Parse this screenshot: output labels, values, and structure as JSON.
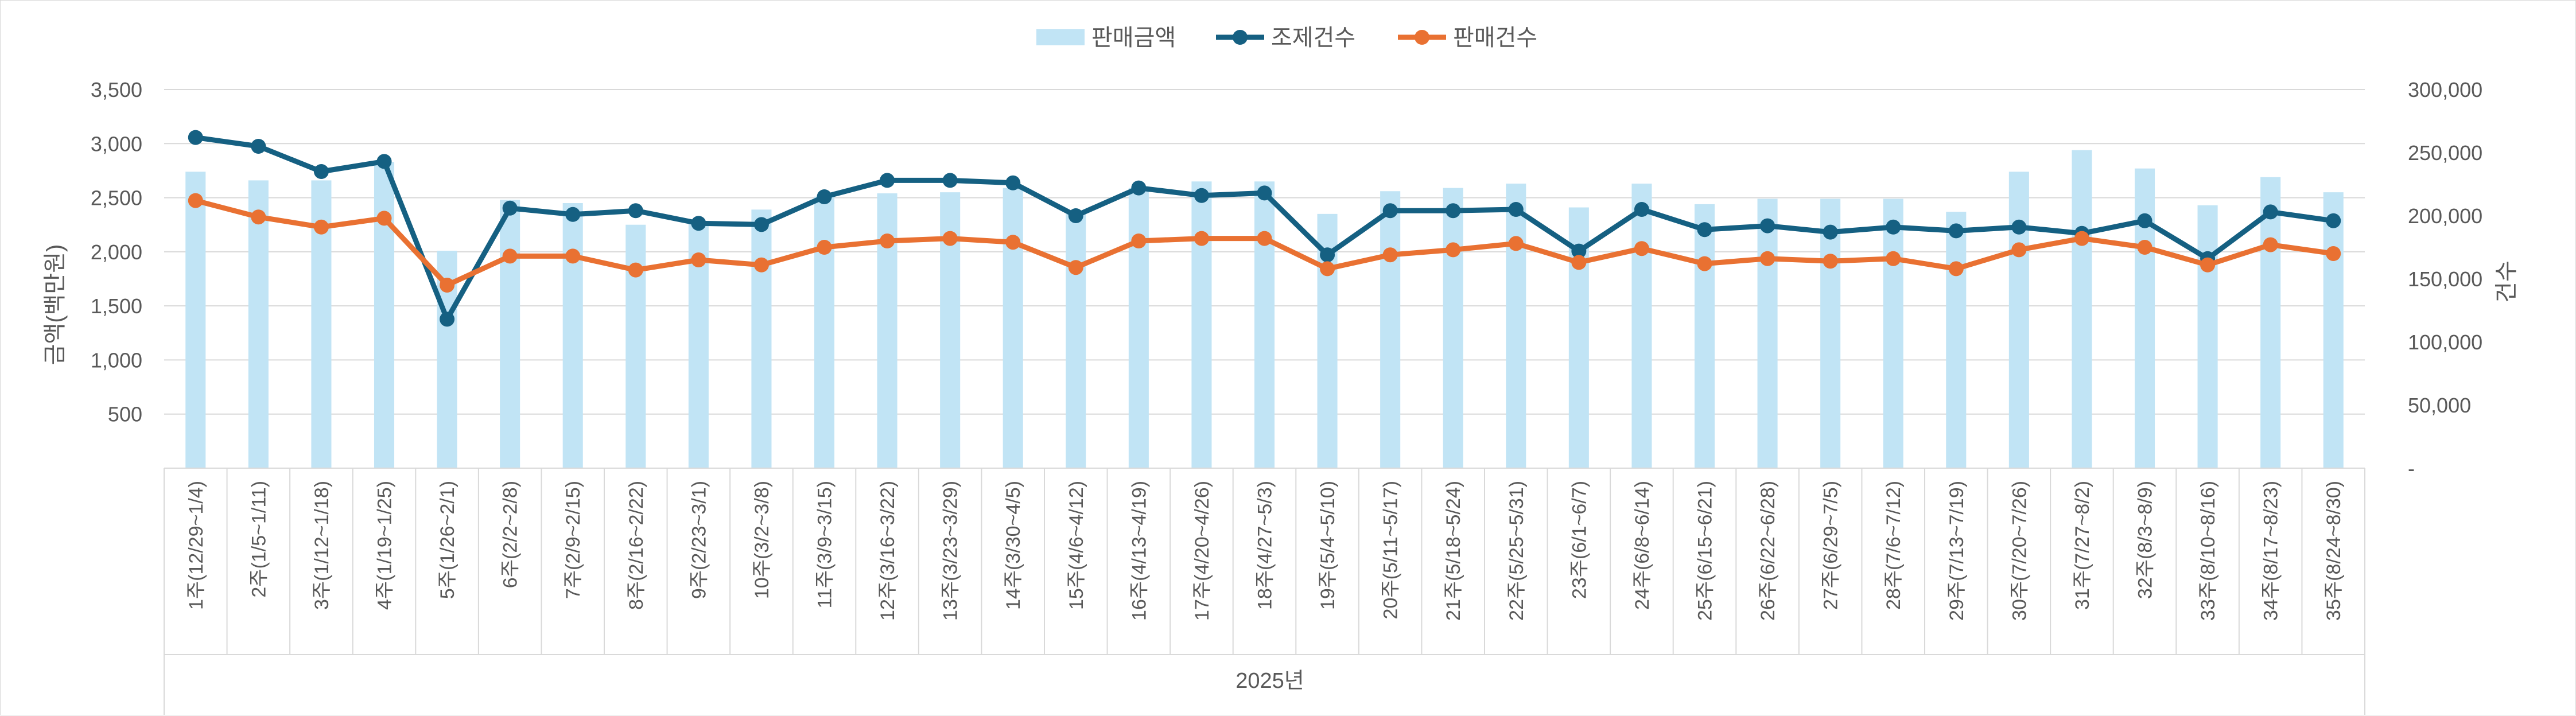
{
  "chart_data": {
    "type": "bar+line",
    "xlabel": "2025년",
    "ylabel": "금액(백만원)",
    "y2label": "건수",
    "ylim": [
      0,
      3500
    ],
    "y2lim": [
      0,
      300000
    ],
    "y_ticks": [
      "",
      "500",
      "1,000",
      "1,500",
      "2,000",
      "2,500",
      "3,000",
      "3,500"
    ],
    "y2_ticks": [
      "-",
      "50,000",
      "100,000",
      "150,000",
      "200,000",
      "250,000",
      "300,000"
    ],
    "grid": true,
    "legend_position": "top",
    "categories": [
      "1주(12/29~1/4)",
      "2주(1/5~1/11)",
      "3주(1/12~1/18)",
      "4주(1/19~1/25)",
      "5주(1/26~2/1)",
      "6주(2/2~2/8)",
      "7주(2/9~2/15)",
      "8주(2/16~2/22)",
      "9주(2/23~3/1)",
      "10주(3/2~3/8)",
      "11주(3/9~3/15)",
      "12주(3/16~3/22)",
      "13주(3/23~3/29)",
      "14주(3/30~4/5)",
      "15주(4/6~4/12)",
      "16주(4/13~4/19)",
      "17주(4/20~4/26)",
      "18주(4/27~5/3)",
      "19주(5/4~5/10)",
      "20주(5/11~5/17)",
      "21주(5/18~5/24)",
      "22주(5/25~5/31)",
      "23주(6/1~6/7)",
      "24주(6/8~6/14)",
      "25주(6/15~6/21)",
      "26주(6/22~6/28)",
      "27주(6/29~7/5)",
      "28주(7/6~7/12)",
      "29주(7/13~7/19)",
      "30주(7/20~7/26)",
      "31주(7/27~8/2)",
      "32주(8/3~8/9)",
      "33주(8/10~8/16)",
      "34주(8/17~8/23)",
      "35주(8/24~8/30)"
    ],
    "series": [
      {
        "name": "판매금액",
        "kind": "bar",
        "axis": "left",
        "color": "#c1e4f5",
        "values": [
          2740,
          2660,
          2660,
          2830,
          2010,
          2480,
          2450,
          2250,
          2280,
          2390,
          2510,
          2540,
          2550,
          2590,
          2350,
          2590,
          2650,
          2650,
          2350,
          2560,
          2590,
          2630,
          2410,
          2630,
          2440,
          2490,
          2490,
          2490,
          2370,
          2740,
          2940,
          2770,
          2430,
          2690,
          2550
        ]
      },
      {
        "name": "조제건수",
        "kind": "line",
        "axis": "right",
        "color": "#156082",
        "values": [
          262000,
          255000,
          235000,
          243000,
          118000,
          206000,
          201000,
          204000,
          194000,
          193000,
          215000,
          228000,
          228000,
          226000,
          200000,
          222000,
          216000,
          218000,
          169000,
          204000,
          204000,
          205000,
          172000,
          205000,
          189000,
          192000,
          187000,
          191000,
          188000,
          191000,
          186000,
          196000,
          166000,
          203000,
          196000
        ]
      },
      {
        "name": "판매건수",
        "kind": "line",
        "axis": "right",
        "color": "#e97132",
        "values": [
          212000,
          199000,
          191000,
          198000,
          145000,
          168000,
          168000,
          157000,
          165000,
          161000,
          175000,
          180000,
          182000,
          179000,
          159000,
          180000,
          182000,
          182000,
          158000,
          169000,
          173000,
          178000,
          163000,
          174000,
          162000,
          166000,
          164000,
          166000,
          158000,
          173000,
          182000,
          175000,
          161000,
          177000,
          170000
        ]
      }
    ]
  }
}
